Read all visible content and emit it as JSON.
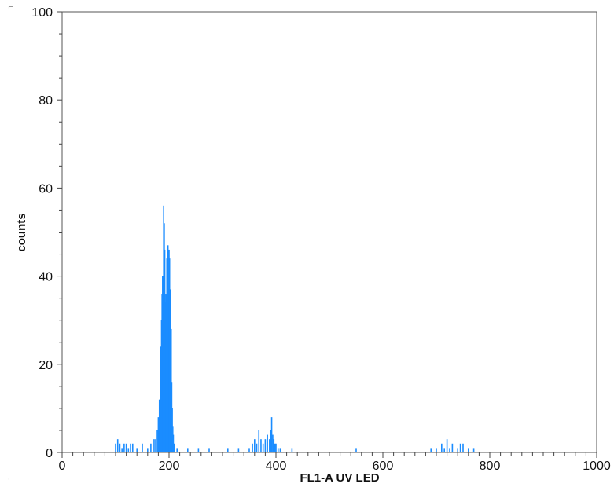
{
  "chart_data": {
    "type": "bar",
    "title": "",
    "xlabel": "FL1-A  UV LED",
    "ylabel": "counts",
    "xlim": [
      0,
      1000
    ],
    "ylim": [
      0,
      100
    ],
    "x_ticks": [
      0,
      200,
      400,
      600,
      800,
      1000
    ],
    "y_ticks": [
      0,
      20,
      40,
      60,
      80,
      100
    ],
    "grid": false,
    "legend": "none",
    "bar_color": "#1a8cff",
    "series": [
      {
        "name": "",
        "x": [
          100,
          104,
          108,
          112,
          116,
          120,
          124,
          128,
          132,
          140,
          150,
          160,
          166,
          172,
          175,
          178,
          180,
          182,
          184,
          185,
          186,
          187,
          188,
          189,
          190,
          191,
          192,
          193,
          194,
          195,
          196,
          197,
          198,
          199,
          200,
          201,
          202,
          203,
          204,
          205,
          206,
          207,
          208,
          210,
          215,
          235,
          255,
          275,
          310,
          330,
          350,
          356,
          360,
          364,
          368,
          372,
          376,
          380,
          384,
          388,
          390,
          392,
          394,
          396,
          398,
          400,
          404,
          408,
          430,
          550,
          690,
          700,
          710,
          715,
          720,
          725,
          730,
          740,
          745,
          750,
          760,
          770
        ],
        "values": [
          2,
          3,
          2,
          1,
          2,
          2,
          1,
          2,
          2,
          1,
          2,
          1,
          2,
          3,
          3,
          5,
          8,
          12,
          20,
          24,
          30,
          36,
          40,
          34,
          56,
          52,
          46,
          34,
          36,
          28,
          44,
          40,
          47,
          37,
          46,
          44,
          37,
          36,
          28,
          16,
          10,
          6,
          4,
          2,
          1,
          1,
          1,
          1,
          1,
          1,
          1,
          2,
          3,
          2,
          5,
          3,
          2,
          3,
          4,
          3,
          5,
          8,
          4,
          3,
          2,
          2,
          1,
          1,
          1,
          1,
          1,
          1,
          2,
          1,
          3,
          1,
          2,
          1,
          2,
          2,
          1,
          1
        ]
      }
    ]
  },
  "corner_marks": [
    "⌐",
    "⌐"
  ]
}
